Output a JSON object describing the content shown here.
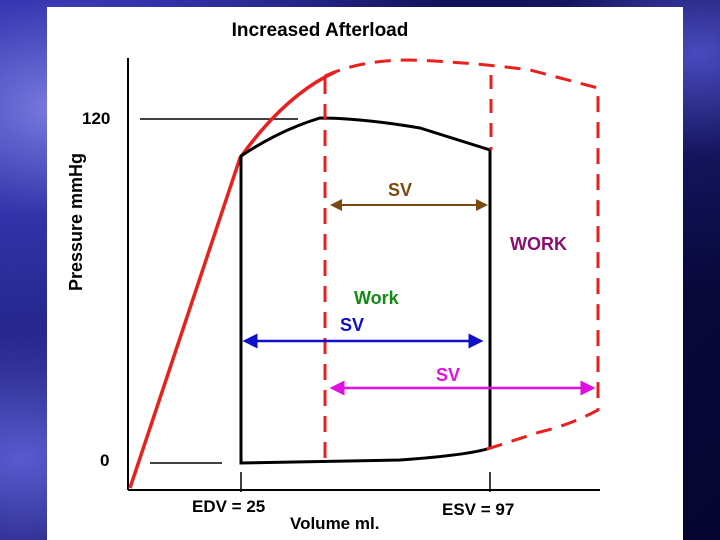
{
  "title": "Increased Afterload",
  "y_axis_label": "Pressure  mmHg",
  "x_axis_label": "Volume ml.",
  "y_tick_120": "120",
  "y_tick_0": "0",
  "edv_label": "EDV = 25",
  "esv_label": "ESV = 97",
  "labels": {
    "sv_brown": "SV",
    "work_purple": "WORK",
    "work_green": "Work",
    "sv_blue": "SV",
    "sv_magenta": "SV"
  },
  "colors": {
    "red": "#e82020",
    "brown": "#7a4a10",
    "purple": "#8a1070",
    "green": "#138a13",
    "blue": "#1010c8",
    "magenta": "#e010e0",
    "black": "#000000"
  }
}
